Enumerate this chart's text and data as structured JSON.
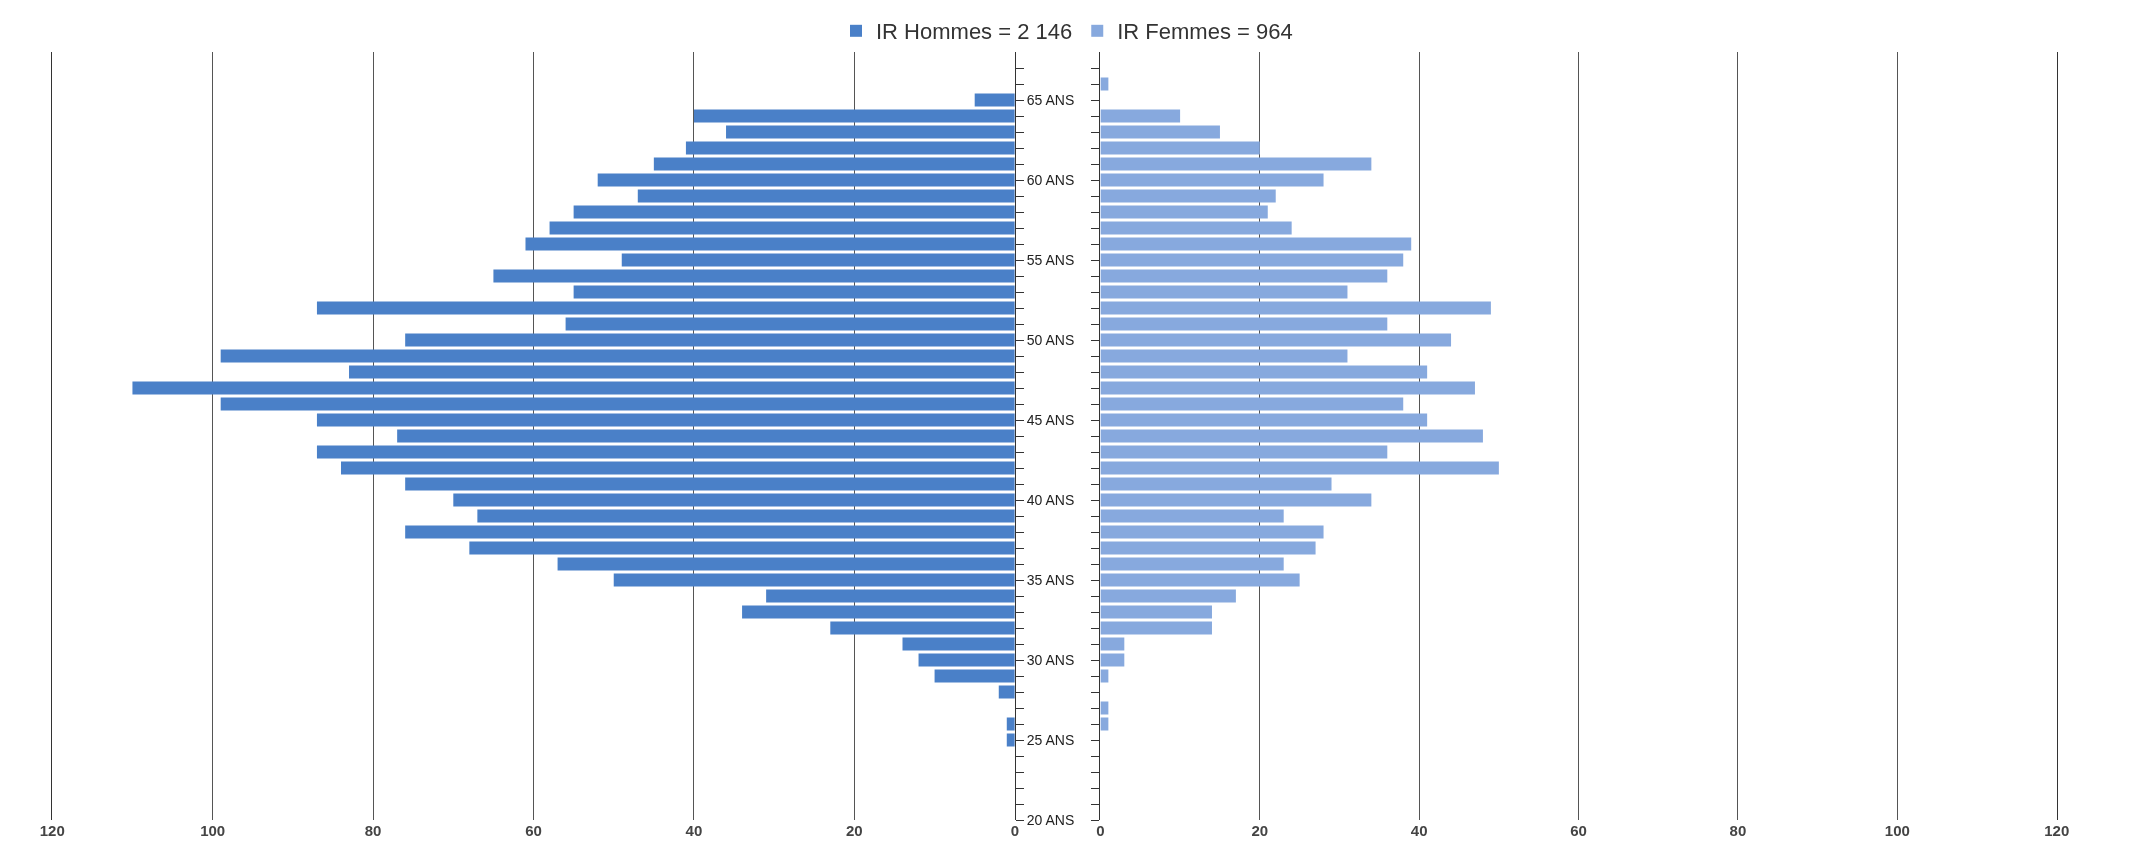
{
  "chart_data": [
    {
      "type": "bar",
      "orientation": "horizontal",
      "legend": "top",
      "grid": "x",
      "x": [
        25,
        26,
        27,
        28,
        29,
        30,
        31,
        32,
        33,
        34,
        35,
        36,
        37,
        38,
        39,
        40,
        41,
        42,
        43,
        44,
        45,
        46,
        47,
        48,
        49,
        50,
        51,
        52,
        53,
        54,
        55,
        56,
        57,
        58,
        59,
        60,
        61,
        62,
        63,
        64,
        65
      ],
      "series": [
        {
          "name": "IR Hommes = 2 146",
          "color": "#4a80c8",
          "values": [
            1,
            1,
            null,
            2,
            10,
            12,
            14,
            23,
            34,
            31,
            50,
            57,
            68,
            76,
            67,
            70,
            76,
            84,
            87,
            77,
            87,
            99,
            110,
            83,
            99,
            76,
            56,
            87,
            55,
            65,
            49,
            61,
            58,
            55,
            47,
            52,
            45,
            41,
            36,
            40,
            5
          ]
        }
      ],
      "xlim": [
        120,
        0
      ],
      "xticks": [
        120,
        100,
        80,
        60,
        40,
        20,
        0
      ],
      "ylim": [
        20,
        68
      ],
      "yticks": [
        {
          "value": 20,
          "label": "20 ANS"
        },
        {
          "value": 21,
          "label": null
        },
        {
          "value": 22,
          "label": null
        },
        {
          "value": 23,
          "label": null
        },
        {
          "value": 24,
          "label": null
        },
        {
          "value": 25,
          "label": "25 ANS"
        },
        {
          "value": 26,
          "label": null
        },
        {
          "value": 27,
          "label": null
        },
        {
          "value": 28,
          "label": null
        },
        {
          "value": 29,
          "label": null
        },
        {
          "value": 30,
          "label": "30 ANS"
        },
        {
          "value": 31,
          "label": null
        },
        {
          "value": 32,
          "label": null
        },
        {
          "value": 33,
          "label": null
        },
        {
          "value": 34,
          "label": null
        },
        {
          "value": 35,
          "label": "35 ANS"
        },
        {
          "value": 36,
          "label": null
        },
        {
          "value": 37,
          "label": null
        },
        {
          "value": 38,
          "label": null
        },
        {
          "value": 39,
          "label": null
        },
        {
          "value": 40,
          "label": "40 ANS"
        },
        {
          "value": 41,
          "label": null
        },
        {
          "value": 42,
          "label": null
        },
        {
          "value": 43,
          "label": null
        },
        {
          "value": 44,
          "label": null
        },
        {
          "value": 45,
          "label": "45 ANS"
        },
        {
          "value": 46,
          "label": null
        },
        {
          "value": 47,
          "label": null
        },
        {
          "value": 48,
          "label": null
        },
        {
          "value": 49,
          "label": null
        },
        {
          "value": 50,
          "label": "50 ANS"
        },
        {
          "value": 51,
          "label": null
        },
        {
          "value": 52,
          "label": null
        },
        {
          "value": 53,
          "label": null
        },
        {
          "value": 54,
          "label": null
        },
        {
          "value": 55,
          "label": "55 ANS"
        },
        {
          "value": 56,
          "label": null
        },
        {
          "value": 57,
          "label": null
        },
        {
          "value": 58,
          "label": null
        },
        {
          "value": 59,
          "label": null
        },
        {
          "value": 60,
          "label": "60 ANS"
        },
        {
          "value": 61,
          "label": null
        },
        {
          "value": 62,
          "label": null
        },
        {
          "value": 63,
          "label": null
        },
        {
          "value": 64,
          "label": null
        },
        {
          "value": 65,
          "label": "65 ANS"
        },
        {
          "value": 66,
          "label": null
        },
        {
          "value": 67,
          "label": null
        }
      ]
    },
    {
      "type": "bar",
      "orientation": "horizontal",
      "legend": "top",
      "grid": "x",
      "tick_labels": "x",
      "x": [
        26,
        27,
        28,
        29,
        30,
        31,
        32,
        33,
        34,
        35,
        36,
        37,
        38,
        39,
        40,
        41,
        42,
        43,
        44,
        45,
        46,
        47,
        48,
        49,
        50,
        51,
        52,
        53,
        54,
        55,
        56,
        57,
        58,
        59,
        60,
        61,
        62,
        63,
        64,
        65,
        66
      ],
      "series": [
        {
          "name": "IR Femmes = 964",
          "color": "#87a9de",
          "values": [
            1,
            1,
            null,
            1,
            3,
            3,
            14,
            14,
            17,
            25,
            23,
            27,
            28,
            23,
            34,
            29,
            50,
            36,
            48,
            41,
            38,
            47,
            41,
            31,
            44,
            36,
            49,
            31,
            36,
            38,
            39,
            24,
            21,
            22,
            28,
            34,
            20,
            15,
            10,
            null,
            1
          ]
        }
      ],
      "xlim": [
        0,
        120
      ],
      "xticks": [
        0,
        20,
        40,
        60,
        80,
        100,
        120
      ],
      "ylim": [
        20,
        68
      ],
      "yticks": [
        {
          "value": 20,
          "label": null
        },
        {
          "value": 21,
          "label": null
        },
        {
          "value": 22,
          "label": null
        },
        {
          "value": 23,
          "label": null
        },
        {
          "value": 24,
          "label": null
        },
        {
          "value": 25,
          "label": null
        },
        {
          "value": 26,
          "label": null
        },
        {
          "value": 27,
          "label": null
        },
        {
          "value": 28,
          "label": null
        },
        {
          "value": 29,
          "label": null
        },
        {
          "value": 30,
          "label": null
        },
        {
          "value": 31,
          "label": null
        },
        {
          "value": 32,
          "label": null
        },
        {
          "value": 33,
          "label": null
        },
        {
          "value": 34,
          "label": null
        },
        {
          "value": 35,
          "label": null
        },
        {
          "value": 36,
          "label": null
        },
        {
          "value": 37,
          "label": null
        },
        {
          "value": 38,
          "label": null
        },
        {
          "value": 39,
          "label": null
        },
        {
          "value": 40,
          "label": null
        },
        {
          "value": 41,
          "label": null
        },
        {
          "value": 42,
          "label": null
        },
        {
          "value": 43,
          "label": null
        },
        {
          "value": 44,
          "label": null
        },
        {
          "value": 45,
          "label": null
        },
        {
          "value": 46,
          "label": null
        },
        {
          "value": 47,
          "label": null
        },
        {
          "value": 48,
          "label": null
        },
        {
          "value": 49,
          "label": null
        },
        {
          "value": 50,
          "label": null
        },
        {
          "value": 51,
          "label": null
        },
        {
          "value": 52,
          "label": null
        },
        {
          "value": 53,
          "label": null
        },
        {
          "value": 54,
          "label": null
        },
        {
          "value": 55,
          "label": null
        },
        {
          "value": 56,
          "label": null
        },
        {
          "value": 57,
          "label": null
        },
        {
          "value": 58,
          "label": null
        },
        {
          "value": 59,
          "label": null
        },
        {
          "value": 60,
          "label": null
        },
        {
          "value": 61,
          "label": null
        },
        {
          "value": 62,
          "label": null
        },
        {
          "value": 63,
          "label": null
        },
        {
          "value": 64,
          "label": null
        },
        {
          "value": 65,
          "label": null
        },
        {
          "value": 66,
          "label": null
        },
        {
          "value": 67,
          "label": null
        }
      ]
    }
  ]
}
